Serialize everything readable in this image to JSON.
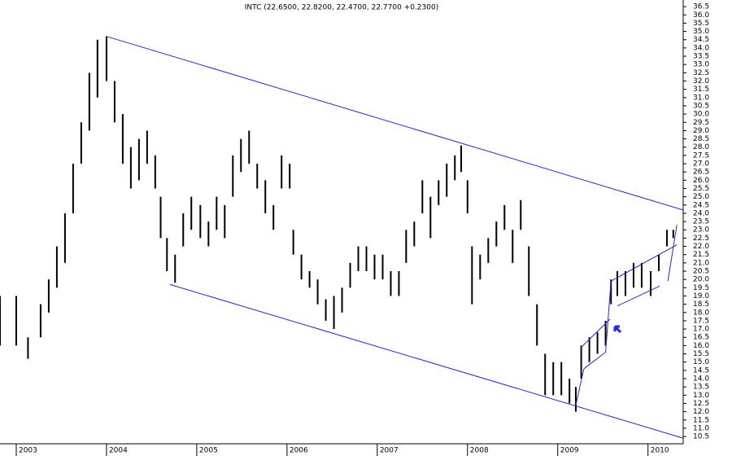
{
  "chart_data": {
    "type": "hilo",
    "title": "INTC (22.6500, 22.8200, 22.4700, 22.7700 +0.2300)",
    "x": [
      2002.82,
      2003.0,
      2003.13,
      2003.27,
      2003.36,
      2003.45,
      2003.54,
      2003.63,
      2003.72,
      2003.81,
      2003.9,
      2004.0,
      2004.09,
      2004.18,
      2004.27,
      2004.36,
      2004.45,
      2004.54,
      2004.6,
      2004.67,
      2004.76,
      2004.85,
      2004.94,
      2005.04,
      2005.13,
      2005.22,
      2005.31,
      2005.4,
      2005.49,
      2005.58,
      2005.67,
      2005.76,
      2005.85,
      2005.94,
      2006.03,
      2006.07,
      2006.16,
      2006.25,
      2006.34,
      2006.43,
      2006.52,
      2006.61,
      2006.7,
      2006.79,
      2006.88,
      2006.97,
      2007.06,
      2007.15,
      2007.24,
      2007.32,
      2007.41,
      2007.5,
      2007.59,
      2007.68,
      2007.77,
      2007.86,
      2007.93,
      2008.0,
      2008.05,
      2008.14,
      2008.23,
      2008.32,
      2008.41,
      2008.5,
      2008.59,
      2008.68,
      2008.77,
      2008.86,
      2008.95,
      2009.04,
      2009.13,
      2009.2,
      2009.26,
      2009.35,
      2009.44,
      2009.53,
      2009.59,
      2009.66,
      2009.75,
      2009.84,
      2009.93,
      2010.03,
      2010.12,
      2010.21,
      2010.28
    ],
    "high": [
      19,
      19,
      16.5,
      18.5,
      20,
      22,
      24,
      27,
      29.5,
      32.5,
      34.5,
      34.7,
      32,
      30,
      28,
      28.5,
      29,
      27.5,
      25,
      22.5,
      21.5,
      24,
      25,
      24.5,
      23.5,
      25,
      24.5,
      27.5,
      28.5,
      29,
      27,
      26,
      24.5,
      27.5,
      27,
      23,
      21.5,
      20.5,
      20,
      18.8,
      19,
      19.5,
      21,
      22,
      22,
      21.5,
      21.5,
      20.5,
      20.5,
      23,
      23.5,
      26,
      25,
      26,
      27,
      27.5,
      28.1,
      26,
      22,
      21.5,
      22.5,
      23.5,
      24.5,
      23,
      24.8,
      22,
      18.5,
      15.5,
      15,
      15,
      14,
      13.5,
      16,
      16.5,
      16.8,
      17.5,
      20,
      20.5,
      20.5,
      21,
      21,
      20.5,
      21.5,
      23,
      23
    ],
    "low": [
      16,
      16,
      15.2,
      16.5,
      18,
      19.5,
      21,
      24,
      27,
      29,
      31,
      32,
      29.5,
      27,
      25.5,
      26,
      27,
      25.5,
      22.5,
      20.5,
      19.8,
      22,
      23,
      22.5,
      22,
      23,
      22.5,
      25,
      26.5,
      27,
      25.5,
      24,
      23,
      25.5,
      25.5,
      21.5,
      20,
      19.5,
      18.5,
      17.5,
      17,
      18,
      19.5,
      20.5,
      20.5,
      20,
      20,
      19,
      19,
      21,
      22,
      24,
      22.5,
      24.5,
      25,
      26,
      26.5,
      24,
      18.5,
      20,
      21,
      22,
      23,
      21,
      23,
      19,
      16,
      13,
      13,
      13,
      12.5,
      12,
      14,
      15,
      15.5,
      16,
      18.5,
      19,
      19,
      19.5,
      19.5,
      19,
      20.5,
      22,
      22.5
    ],
    "color": "#000000",
    "trendline_color": "#2323ff",
    "trendlines": [
      {
        "x": [
          2004.0,
          2010.39
        ],
        "y": [
          34.7,
          24.2
        ]
      },
      {
        "x": [
          2004.7,
          2010.39
        ],
        "y": [
          19.7,
          10.4
        ]
      },
      {
        "x": [
          2009.26,
          2009.58
        ],
        "y": [
          15.9,
          17.6
        ]
      },
      {
        "x": [
          2009.2,
          2009.29
        ],
        "y": [
          12.4,
          14.6
        ]
      },
      {
        "x": [
          2009.29,
          2009.53
        ],
        "y": [
          14.6,
          15.6
        ]
      },
      {
        "x": [
          2009.53,
          2009.59
        ],
        "y": [
          15.6,
          19.9
        ]
      },
      {
        "x": [
          2009.59,
          2010.32
        ],
        "y": [
          19.9,
          22.1
        ]
      },
      {
        "x": [
          2009.66,
          2010.13
        ],
        "y": [
          18.4,
          19.6
        ]
      },
      {
        "x": [
          2010.22,
          2010.32
        ],
        "y": [
          19.9,
          23.3
        ]
      }
    ],
    "xlim": [
      2002.82,
      2010.39
    ],
    "xticks": [
      2003,
      2004,
      2005,
      2006,
      2007,
      2008,
      2009,
      2010
    ],
    "ylim": [
      10.06,
      36.9
    ],
    "yticks": [
      10.5,
      {
        "value": 11,
        "label": "11.0"
      },
      11.5,
      {
        "value": 12,
        "label": "12.0"
      },
      12.5,
      {
        "value": 13,
        "label": "13.0"
      },
      13.5,
      {
        "value": 14,
        "label": "14.0"
      },
      14.5,
      {
        "value": 15,
        "label": "15.0"
      },
      15.5,
      {
        "value": 16,
        "label": "16.0"
      },
      16.5,
      {
        "value": 17,
        "label": "17.0"
      },
      17.5,
      {
        "value": 18,
        "label": "18.0"
      },
      18.5,
      {
        "value": 19,
        "label": "19.0"
      },
      19.5,
      {
        "value": 20,
        "label": "20.0"
      },
      20.5,
      {
        "value": 21,
        "label": "21.0"
      },
      21.5,
      {
        "value": 22,
        "label": "22.0"
      },
      22.5,
      {
        "value": 23,
        "label": "23.0"
      },
      23.5,
      {
        "value": 24,
        "label": "24.0"
      },
      24.5,
      {
        "value": 25,
        "label": "25.0"
      },
      25.5,
      {
        "value": 26,
        "label": "26.0"
      },
      26.5,
      {
        "value": 27,
        "label": "27.0"
      },
      27.5,
      {
        "value": 28,
        "label": "28.0"
      },
      28.5,
      {
        "value": 29,
        "label": "29.0"
      },
      29.5,
      {
        "value": 30,
        "label": "30.0"
      },
      30.5,
      {
        "value": 31,
        "label": "31.0"
      },
      31.5,
      {
        "value": 32,
        "label": "32.0"
      },
      32.5,
      {
        "value": 33,
        "label": "33.0"
      },
      33.5,
      {
        "value": 34,
        "label": "34.0"
      },
      34.5,
      {
        "value": 35,
        "label": "35.0"
      },
      35.5,
      {
        "value": 36,
        "label": "36.0"
      },
      36.5
    ]
  }
}
